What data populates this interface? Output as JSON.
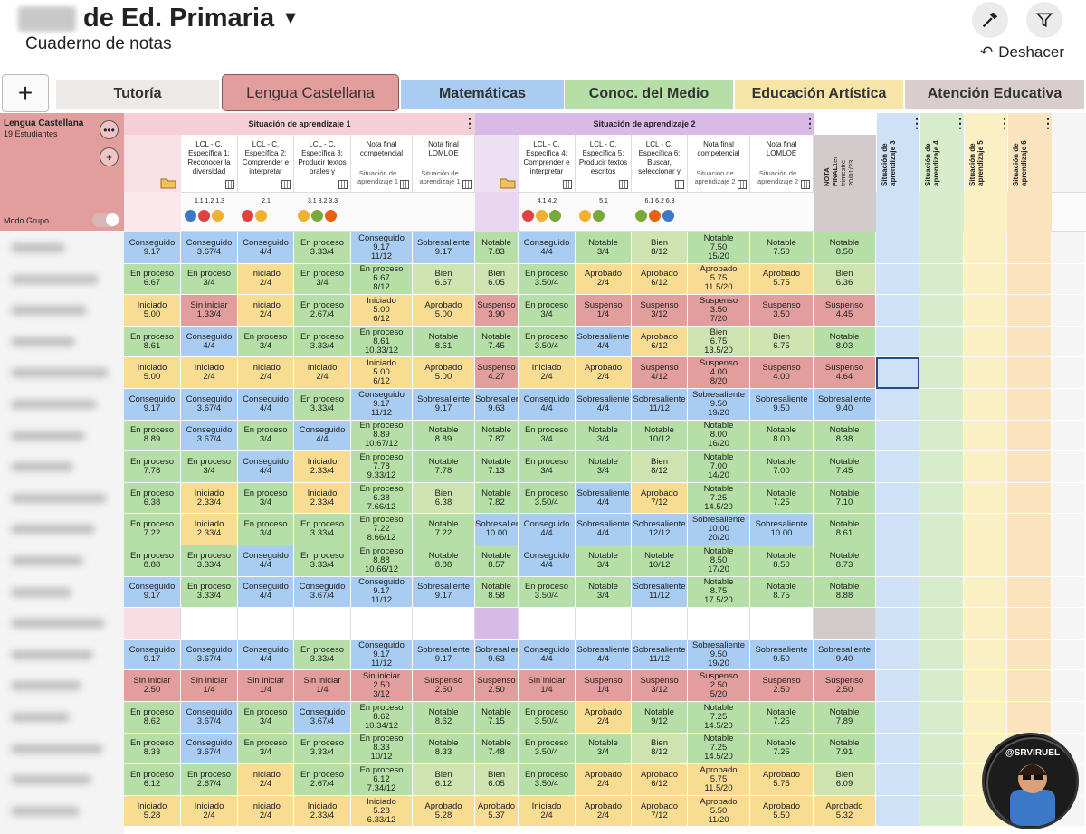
{
  "header": {
    "title": "de Ed. Primaria",
    "subtitle": "Cuaderno de notas",
    "undo": "Deshacer"
  },
  "tabs": [
    {
      "label": "Tutoría",
      "color": "#ece9e6"
    },
    {
      "label": "Lengua Castellana",
      "color": "#e29d9d"
    },
    {
      "label": "Matemáticas",
      "color": "#a9ccf2"
    },
    {
      "label": "Conoc. del Medio",
      "color": "#b5dfa6"
    },
    {
      "label": "Educación Artística",
      "color": "#f7e5a7"
    },
    {
      "label": "Atención Educativa",
      "color": "#d9cdcd"
    }
  ],
  "sidebar": {
    "title": "Lengua Castellana",
    "students": "19 Estudiantes",
    "mode": "Modo Grupo"
  },
  "situations": {
    "s1": "Situación de aprendizaje 1",
    "s2": "Situación de aprendizaje 2"
  },
  "columns": [
    {
      "h": "LCL - C. Específica 1: Reconocer la diversidad",
      "codes": "1.1 1.2 1.3"
    },
    {
      "h": "LCL - C. Específica 2: Comprender e interpretar",
      "codes": "2.1"
    },
    {
      "h": "LCL - C. Específica 3: Producir textos orales y",
      "codes": "3.1 3.2 3.3"
    },
    {
      "h": "Nota final competencial",
      "sub": "Situación de aprendizaje 1"
    },
    {
      "h": "Nota final LOMLOE",
      "sub": "Situación de aprendizaje 1"
    },
    {
      "h": ""
    },
    {
      "h": "LCL - C. Específica 4: Comprender e interpretar",
      "codes": "4.1 4.2"
    },
    {
      "h": "LCL - C. Específica 5: Producir textos escritos",
      "codes": "5.1"
    },
    {
      "h": "LCL - C. Específica 6: Buscar, seleccionar y",
      "codes": "6.1 6.2 6.3"
    },
    {
      "h": "Nota final competencial",
      "sub": "Situación de aprendizaje 2"
    },
    {
      "h": "Nota final LOMLOE",
      "sub": "Situación de aprendizaje 2"
    },
    {
      "h": "NOTA FINAL",
      "sub": "1er trimestre 20/01/23"
    }
  ],
  "extra_cols": [
    "Situación de aprendizaje 3",
    "Situación de aprendizaje 4",
    "Situación de aprendizaje 5",
    "Situación de aprendizaje 6"
  ],
  "colors": {
    "Conseguido": "#a9ccf2",
    "Sobresaliente": "#a9ccf2",
    "En proceso": "#b5dfa6",
    "Notable": "#b5dfa6",
    "Bien": "#cfe3b0",
    "Iniciado": "#f7dc92",
    "Aprobado": "#f7dc92",
    "Sin iniciar": "#e29d9d",
    "Suspenso": "#e29d9d"
  },
  "rows": [
    [
      [
        "Conseguido",
        "9.17"
      ],
      [
        "Conseguido",
        "3.67/4"
      ],
      [
        "Conseguido",
        "4/4"
      ],
      [
        "En proceso",
        "3.33/4"
      ],
      [
        "Conseguido",
        "9.17",
        "11/12"
      ],
      [
        "Sobresaliente",
        "9.17"
      ],
      [
        "Notable",
        "7.83"
      ],
      [
        "Conseguido",
        "4/4"
      ],
      [
        "Notable",
        "3/4"
      ],
      [
        "Bien",
        "8/12"
      ],
      [
        "Notable",
        "7.50",
        "15/20"
      ],
      [
        "Notable",
        "7.50"
      ],
      [
        "Notable",
        "8.50"
      ]
    ],
    [
      [
        "En proceso",
        "6.67"
      ],
      [
        "En proceso",
        "3/4"
      ],
      [
        "Iniciado",
        "2/4"
      ],
      [
        "En proceso",
        "3/4"
      ],
      [
        "En proceso",
        "6.67",
        "8/12"
      ],
      [
        "Bien",
        "6.67"
      ],
      [
        "Bien",
        "6.05"
      ],
      [
        "En proceso",
        "3.50/4"
      ],
      [
        "Aprobado",
        "2/4"
      ],
      [
        "Aprobado",
        "6/12"
      ],
      [
        "Aprobado",
        "5.75",
        "11.5/20"
      ],
      [
        "Aprobado",
        "5.75"
      ],
      [
        "Bien",
        "6.36"
      ]
    ],
    [
      [
        "Iniciado",
        "5.00"
      ],
      [
        "Sin iniciar",
        "1.33/4"
      ],
      [
        "Iniciado",
        "2/4"
      ],
      [
        "En proceso",
        "2.67/4"
      ],
      [
        "Iniciado",
        "5.00",
        "6/12"
      ],
      [
        "Aprobado",
        "5.00"
      ],
      [
        "Suspenso",
        "3.90"
      ],
      [
        "En proceso",
        "3/4"
      ],
      [
        "Suspenso",
        "1/4"
      ],
      [
        "Suspenso",
        "3/12"
      ],
      [
        "Suspenso",
        "3.50",
        "7/20"
      ],
      [
        "Suspenso",
        "3.50"
      ],
      [
        "Suspenso",
        "4.45"
      ]
    ],
    [
      [
        "En proceso",
        "8.61"
      ],
      [
        "Conseguido",
        "4/4"
      ],
      [
        "En proceso",
        "3/4"
      ],
      [
        "En proceso",
        "3.33/4"
      ],
      [
        "En proceso",
        "8.61",
        "10.33/12"
      ],
      [
        "Notable",
        "8.61"
      ],
      [
        "Notable",
        "7.45"
      ],
      [
        "En proceso",
        "3.50/4"
      ],
      [
        "Sobresaliente",
        "4/4"
      ],
      [
        "Aprobado",
        "6/12"
      ],
      [
        "Bien",
        "6.75",
        "13.5/20"
      ],
      [
        "Bien",
        "6.75"
      ],
      [
        "Notable",
        "8.03"
      ]
    ],
    [
      [
        "Iniciado",
        "5.00"
      ],
      [
        "Iniciado",
        "2/4"
      ],
      [
        "Iniciado",
        "2/4"
      ],
      [
        "Iniciado",
        "2/4"
      ],
      [
        "Iniciado",
        "5.00",
        "6/12"
      ],
      [
        "Aprobado",
        "5.00"
      ],
      [
        "Suspenso",
        "4.27"
      ],
      [
        "Iniciado",
        "2/4"
      ],
      [
        "Aprobado",
        "2/4"
      ],
      [
        "Suspenso",
        "4/12"
      ],
      [
        "Suspenso",
        "4.00",
        "8/20"
      ],
      [
        "Suspenso",
        "4.00"
      ],
      [
        "Suspenso",
        "4.64"
      ]
    ],
    [
      [
        "Conseguido",
        "9.17"
      ],
      [
        "Conseguido",
        "3.67/4"
      ],
      [
        "Conseguido",
        "4/4"
      ],
      [
        "En proceso",
        "3.33/4"
      ],
      [
        "Conseguido",
        "9.17",
        "11/12"
      ],
      [
        "Sobresaliente",
        "9.17"
      ],
      [
        "Sobresaliente",
        "9.63"
      ],
      [
        "Conseguido",
        "4/4"
      ],
      [
        "Sobresaliente",
        "4/4"
      ],
      [
        "Sobresaliente",
        "11/12"
      ],
      [
        "Sobresaliente",
        "9.50",
        "19/20"
      ],
      [
        "Sobresaliente",
        "9.50"
      ],
      [
        "Sobresaliente",
        "9.40"
      ]
    ],
    [
      [
        "En proceso",
        "8.89"
      ],
      [
        "Conseguido",
        "3.67/4"
      ],
      [
        "En proceso",
        "3/4"
      ],
      [
        "Conseguido",
        "4/4"
      ],
      [
        "En proceso",
        "8.89",
        "10.67/12"
      ],
      [
        "Notable",
        "8.89"
      ],
      [
        "Notable",
        "7.87"
      ],
      [
        "En proceso",
        "3/4"
      ],
      [
        "Notable",
        "3/4"
      ],
      [
        "Notable",
        "10/12"
      ],
      [
        "Notable",
        "8.00",
        "16/20"
      ],
      [
        "Notable",
        "8.00"
      ],
      [
        "Notable",
        "8.38"
      ]
    ],
    [
      [
        "En proceso",
        "7.78"
      ],
      [
        "En proceso",
        "3/4"
      ],
      [
        "Conseguido",
        "4/4"
      ],
      [
        "Iniciado",
        "2.33/4"
      ],
      [
        "En proceso",
        "7.78",
        "9.33/12"
      ],
      [
        "Notable",
        "7.78"
      ],
      [
        "Notable",
        "7.13"
      ],
      [
        "En proceso",
        "3/4"
      ],
      [
        "Notable",
        "3/4"
      ],
      [
        "Bien",
        "8/12"
      ],
      [
        "Notable",
        "7.00",
        "14/20"
      ],
      [
        "Notable",
        "7.00"
      ],
      [
        "Notable",
        "7.45"
      ]
    ],
    [
      [
        "En proceso",
        "6.38"
      ],
      [
        "Iniciado",
        "2.33/4"
      ],
      [
        "En proceso",
        "3/4"
      ],
      [
        "Iniciado",
        "2.33/4"
      ],
      [
        "En proceso",
        "6.38",
        "7.66/12"
      ],
      [
        "Bien",
        "6.38"
      ],
      [
        "Notable",
        "7.82"
      ],
      [
        "En proceso",
        "3.50/4"
      ],
      [
        "Sobresaliente",
        "4/4"
      ],
      [
        "Aprobado",
        "7/12"
      ],
      [
        "Notable",
        "7.25",
        "14.5/20"
      ],
      [
        "Notable",
        "7.25"
      ],
      [
        "Notable",
        "7.10"
      ]
    ],
    [
      [
        "En proceso",
        "7.22"
      ],
      [
        "Iniciado",
        "2.33/4"
      ],
      [
        "En proceso",
        "3/4"
      ],
      [
        "En proceso",
        "3.33/4"
      ],
      [
        "En proceso",
        "7.22",
        "8.66/12"
      ],
      [
        "Notable",
        "7.22"
      ],
      [
        "Sobresaliente",
        "10.00"
      ],
      [
        "Conseguido",
        "4/4"
      ],
      [
        "Sobresaliente",
        "4/4"
      ],
      [
        "Sobresaliente",
        "12/12"
      ],
      [
        "Sobresaliente",
        "10.00",
        "20/20"
      ],
      [
        "Sobresaliente",
        "10.00"
      ],
      [
        "Notable",
        "8.61"
      ]
    ],
    [
      [
        "En proceso",
        "8.88"
      ],
      [
        "En proceso",
        "3.33/4"
      ],
      [
        "Conseguido",
        "4/4"
      ],
      [
        "En proceso",
        "3.33/4"
      ],
      [
        "En proceso",
        "8.88",
        "10.66/12"
      ],
      [
        "Notable",
        "8.88"
      ],
      [
        "Notable",
        "8.57"
      ],
      [
        "Conseguido",
        "4/4"
      ],
      [
        "Notable",
        "3/4"
      ],
      [
        "Notable",
        "10/12"
      ],
      [
        "Notable",
        "8.50",
        "17/20"
      ],
      [
        "Notable",
        "8.50"
      ],
      [
        "Notable",
        "8.73"
      ]
    ],
    [
      [
        "Conseguido",
        "9.17"
      ],
      [
        "En proceso",
        "3.33/4"
      ],
      [
        "Conseguido",
        "4/4"
      ],
      [
        "Conseguido",
        "3.67/4"
      ],
      [
        "Conseguido",
        "9.17",
        "11/12"
      ],
      [
        "Sobresaliente",
        "9.17"
      ],
      [
        "Notable",
        "8.58"
      ],
      [
        "En proceso",
        "3.50/4"
      ],
      [
        "Notable",
        "3/4"
      ],
      [
        "Sobresaliente",
        "11/12"
      ],
      [
        "Notable",
        "8.75",
        "17.5/20"
      ],
      [
        "Notable",
        "8.75"
      ],
      [
        "Notable",
        "8.88"
      ]
    ],
    [],
    [
      [
        "Conseguido",
        "9.17"
      ],
      [
        "Conseguido",
        "3.67/4"
      ],
      [
        "Conseguido",
        "4/4"
      ],
      [
        "En proceso",
        "3.33/4"
      ],
      [
        "Conseguido",
        "9.17",
        "11/12"
      ],
      [
        "Sobresaliente",
        "9.17"
      ],
      [
        "Sobresaliente",
        "9.63"
      ],
      [
        "Conseguido",
        "4/4"
      ],
      [
        "Sobresaliente",
        "4/4"
      ],
      [
        "Sobresaliente",
        "11/12"
      ],
      [
        "Sobresaliente",
        "9.50",
        "19/20"
      ],
      [
        "Sobresaliente",
        "9.50"
      ],
      [
        "Sobresaliente",
        "9.40"
      ]
    ],
    [
      [
        "Sin iniciar",
        "2.50"
      ],
      [
        "Sin iniciar",
        "1/4"
      ],
      [
        "Sin iniciar",
        "1/4"
      ],
      [
        "Sin iniciar",
        "1/4"
      ],
      [
        "Sin iniciar",
        "2.50",
        "3/12"
      ],
      [
        "Suspenso",
        "2.50"
      ],
      [
        "Suspenso",
        "2.50"
      ],
      [
        "Sin iniciar",
        "1/4"
      ],
      [
        "Suspenso",
        "1/4"
      ],
      [
        "Suspenso",
        "3/12"
      ],
      [
        "Suspenso",
        "2.50",
        "5/20"
      ],
      [
        "Suspenso",
        "2.50"
      ],
      [
        "Suspenso",
        "2.50"
      ]
    ],
    [
      [
        "En proceso",
        "8.62"
      ],
      [
        "Conseguido",
        "3.67/4"
      ],
      [
        "En proceso",
        "3/4"
      ],
      [
        "Conseguido",
        "3.67/4"
      ],
      [
        "En proceso",
        "8.62",
        "10.34/12"
      ],
      [
        "Notable",
        "8.62"
      ],
      [
        "Notable",
        "7.15"
      ],
      [
        "En proceso",
        "3.50/4"
      ],
      [
        "Aprobado",
        "2/4"
      ],
      [
        "Notable",
        "9/12"
      ],
      [
        "Notable",
        "7.25",
        "14.5/20"
      ],
      [
        "Notable",
        "7.25"
      ],
      [
        "Notable",
        "7.89"
      ]
    ],
    [
      [
        "En proceso",
        "8.33"
      ],
      [
        "Conseguido",
        "3.67/4"
      ],
      [
        "En proceso",
        "3/4"
      ],
      [
        "En proceso",
        "3.33/4"
      ],
      [
        "En proceso",
        "8.33",
        "10/12"
      ],
      [
        "Notable",
        "8.33"
      ],
      [
        "Notable",
        "7.48"
      ],
      [
        "En proceso",
        "3.50/4"
      ],
      [
        "Notable",
        "3/4"
      ],
      [
        "Bien",
        "8/12"
      ],
      [
        "Notable",
        "7.25",
        "14.5/20"
      ],
      [
        "Notable",
        "7.25"
      ],
      [
        "Notable",
        "7.91"
      ]
    ],
    [
      [
        "En proceso",
        "6.12"
      ],
      [
        "En proceso",
        "2.67/4"
      ],
      [
        "Iniciado",
        "2/4"
      ],
      [
        "En proceso",
        "2.67/4"
      ],
      [
        "En proceso",
        "6.12",
        "7.34/12"
      ],
      [
        "Bien",
        "6.12"
      ],
      [
        "Bien",
        "6.05"
      ],
      [
        "En proceso",
        "3.50/4"
      ],
      [
        "Aprobado",
        "2/4"
      ],
      [
        "Aprobado",
        "6/12"
      ],
      [
        "Aprobado",
        "5.75",
        "11.5/20"
      ],
      [
        "Aprobado",
        "5.75"
      ],
      [
        "Bien",
        "6.09"
      ]
    ],
    [
      [
        "Iniciado",
        "5.28"
      ],
      [
        "Iniciado",
        "2/4"
      ],
      [
        "Iniciado",
        "2/4"
      ],
      [
        "Iniciado",
        "2.33/4"
      ],
      [
        "Iniciado",
        "5.28",
        "6.33/12"
      ],
      [
        "Aprobado",
        "5.28"
      ],
      [
        "Aprobado",
        "5.37"
      ],
      [
        "Iniciado",
        "2/4"
      ],
      [
        "Aprobado",
        "2/4"
      ],
      [
        "Aprobado",
        "7/12"
      ],
      [
        "Aprobado",
        "5.50",
        "11/20"
      ],
      [
        "Aprobado",
        "5.50"
      ],
      [
        "Aprobado",
        "5.32"
      ]
    ]
  ],
  "badge": "@SRVIRUEL"
}
